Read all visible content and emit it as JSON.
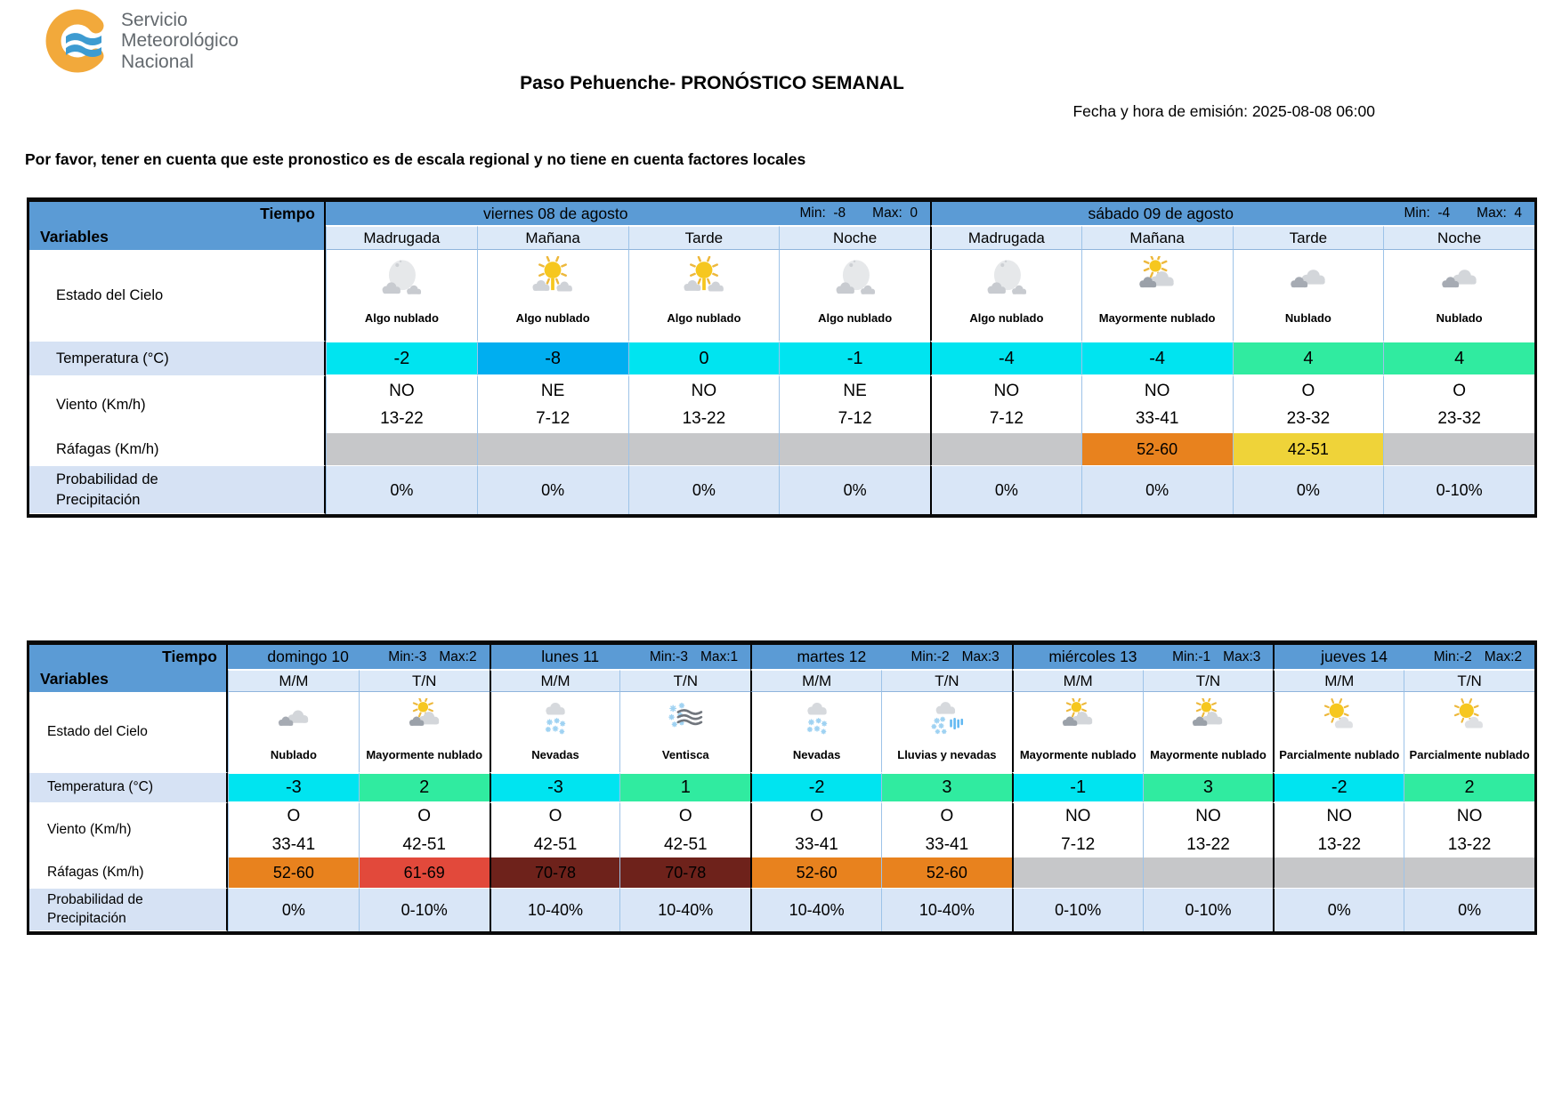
{
  "logo": {
    "line1": "Servicio",
    "line2": "Meteorológico",
    "line3": "Nacional"
  },
  "header": {
    "title": "Paso Pehuenche- PRONÓSTICO SEMANAL",
    "emission": "Fecha y hora de emisión: 2025-08-08 06:00",
    "disclaimer": "Por favor, tener en cuenta que este pronostico es de escala regional y no tiene en cuenta factores locales"
  },
  "labels": {
    "tiempo": "Tiempo",
    "variables": "Variables",
    "rows": [
      "Estado del Cielo",
      "Temperatura (°C)",
      "Viento (Km/h)",
      "Ráfagas (Km/h)",
      "Probabilidad de Precipitación"
    ]
  },
  "colors": {
    "header_blue": "#5B9BD5",
    "subheader_blue": "#DCE9F8",
    "label_blue": "#D6E2F4",
    "precip_blue": "#D9E6F7",
    "grid_blue": "#9DC3E8",
    "temp_cyan": "#00E4F0",
    "temp_blue": "#00AEF0",
    "temp_green": "#30EBA0",
    "gust_orange": "#E8821E",
    "gust_yellow": "#EFD339",
    "gust_red": "#E2493B",
    "gust_darkred": "#6E221B",
    "gust_gray": "#C6C7C9"
  },
  "table1": {
    "days": [
      {
        "name": "viernes 08 de agosto",
        "min_text": "Min:  -8",
        "max_text": "Max:  0",
        "periods": [
          {
            "label": "Madrugada",
            "icon": "moon-clouds",
            "sky": "Algo nublado",
            "temp": "-2",
            "temp_color": "cyan",
            "wind_dir": "NO",
            "wind_range": "13-22",
            "gust": "",
            "gust_color": "gray",
            "precip": "0%"
          },
          {
            "label": "Mañana",
            "icon": "sun-clouds",
            "sky": "Algo nublado",
            "temp": "-8",
            "temp_color": "blue",
            "wind_dir": "NE",
            "wind_range": "7-12",
            "gust": "",
            "gust_color": "gray",
            "precip": "0%"
          },
          {
            "label": "Tarde",
            "icon": "sun-clouds",
            "sky": "Algo nublado",
            "temp": "0",
            "temp_color": "cyan",
            "wind_dir": "NO",
            "wind_range": "13-22",
            "gust": "",
            "gust_color": "gray",
            "precip": "0%"
          },
          {
            "label": "Noche",
            "icon": "moon-clouds",
            "sky": "Algo nublado",
            "temp": "-1",
            "temp_color": "cyan",
            "wind_dir": "NE",
            "wind_range": "7-12",
            "gust": "",
            "gust_color": "gray",
            "precip": "0%"
          }
        ]
      },
      {
        "name": "sábado 09 de agosto",
        "min_text": "Min:  -4",
        "max_text": "Max:  4",
        "periods": [
          {
            "label": "Madrugada",
            "icon": "moon-clouds",
            "sky": "Algo nublado",
            "temp": "-4",
            "temp_color": "cyan",
            "wind_dir": "NO",
            "wind_range": "7-12",
            "gust": "",
            "gust_color": "gray",
            "precip": "0%"
          },
          {
            "label": "Mañana",
            "icon": "mostly-cloudy",
            "sky": "Mayormente nublado",
            "temp": "-4",
            "temp_color": "cyan",
            "wind_dir": "NO",
            "wind_range": "33-41",
            "gust": "52-60",
            "gust_color": "orange",
            "precip": "0%"
          },
          {
            "label": "Tarde",
            "icon": "cloudy",
            "sky": "Nublado",
            "temp": "4",
            "temp_color": "green",
            "wind_dir": "O",
            "wind_range": "23-32",
            "gust": "42-51",
            "gust_color": "yellow",
            "precip": "0%"
          },
          {
            "label": "Noche",
            "icon": "cloudy",
            "sky": "Nublado",
            "temp": "4",
            "temp_color": "green",
            "wind_dir": "O",
            "wind_range": "23-32",
            "gust": "",
            "gust_color": "gray",
            "precip": "0-10%"
          }
        ]
      }
    ]
  },
  "table2": {
    "days": [
      {
        "name": "domingo 10",
        "min_text": "Min:-3",
        "max_text": "Max:2",
        "periods": [
          {
            "label": "M/M",
            "icon": "cloudy",
            "sky": "Nublado",
            "temp": "-3",
            "temp_color": "cyan",
            "wind_dir": "O",
            "wind_range": "33-41",
            "gust": "52-60",
            "gust_color": "orange",
            "precip": "0%"
          },
          {
            "label": "T/N",
            "icon": "mostly-cloudy",
            "sky": "Mayormente nublado",
            "temp": "2",
            "temp_color": "green",
            "wind_dir": "O",
            "wind_range": "42-51",
            "gust": "61-69",
            "gust_color": "red",
            "precip": "0-10%"
          }
        ]
      },
      {
        "name": "lunes 11",
        "min_text": "Min:-3",
        "max_text": "Max:1",
        "periods": [
          {
            "label": "M/M",
            "icon": "snow",
            "sky": "Nevadas",
            "temp": "-3",
            "temp_color": "cyan",
            "wind_dir": "O",
            "wind_range": "42-51",
            "gust": "70-78",
            "gust_color": "darkred",
            "precip": "10-40%"
          },
          {
            "label": "T/N",
            "icon": "blizzard",
            "sky": "Ventisca",
            "temp": "1",
            "temp_color": "green",
            "wind_dir": "O",
            "wind_range": "42-51",
            "gust": "70-78",
            "gust_color": "darkred",
            "precip": "10-40%"
          }
        ]
      },
      {
        "name": "martes 12",
        "min_text": "Min:-2",
        "max_text": "Max:3",
        "periods": [
          {
            "label": "M/M",
            "icon": "snow",
            "sky": "Nevadas",
            "temp": "-2",
            "temp_color": "cyan",
            "wind_dir": "O",
            "wind_range": "33-41",
            "gust": "52-60",
            "gust_color": "orange",
            "precip": "10-40%"
          },
          {
            "label": "T/N",
            "icon": "rain-snow",
            "sky": "Lluvias y nevadas",
            "temp": "3",
            "temp_color": "green",
            "wind_dir": "O",
            "wind_range": "33-41",
            "gust": "52-60",
            "gust_color": "orange",
            "precip": "10-40%"
          }
        ]
      },
      {
        "name": "miércoles 13",
        "min_text": "Min:-1",
        "max_text": "Max:3",
        "periods": [
          {
            "label": "M/M",
            "icon": "mostly-cloudy",
            "sky": "Mayormente nublado",
            "temp": "-1",
            "temp_color": "cyan",
            "wind_dir": "NO",
            "wind_range": "7-12",
            "gust": "",
            "gust_color": "gray",
            "precip": "0-10%"
          },
          {
            "label": "T/N",
            "icon": "mostly-cloudy",
            "sky": "Mayormente nublado",
            "temp": "3",
            "temp_color": "green",
            "wind_dir": "NO",
            "wind_range": "13-22",
            "gust": "",
            "gust_color": "gray",
            "precip": "0-10%"
          }
        ]
      },
      {
        "name": "jueves 14",
        "min_text": "Min:-2",
        "max_text": "Max:2",
        "periods": [
          {
            "label": "M/M",
            "icon": "partly-cloudy",
            "sky": "Parcialmente nublado",
            "temp": "-2",
            "temp_color": "cyan",
            "wind_dir": "NO",
            "wind_range": "13-22",
            "gust": "",
            "gust_color": "gray",
            "precip": "0%"
          },
          {
            "label": "T/N",
            "icon": "partly-cloudy",
            "sky": "Parcialmente nublado",
            "temp": "2",
            "temp_color": "green",
            "wind_dir": "NO",
            "wind_range": "13-22",
            "gust": "",
            "gust_color": "gray",
            "precip": "0%"
          }
        ]
      }
    ]
  }
}
